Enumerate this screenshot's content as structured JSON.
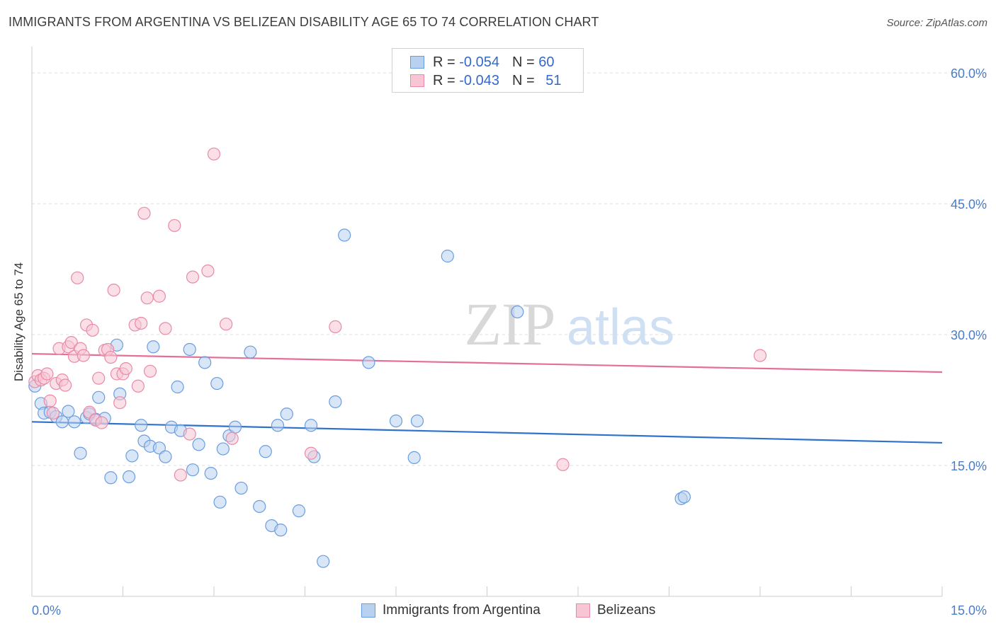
{
  "title": "IMMIGRANTS FROM ARGENTINA VS BELIZEAN DISABILITY AGE 65 TO 74 CORRELATION CHART",
  "source": "Source: ZipAtlas.com",
  "watermark": {
    "zip": "ZIP",
    "atlas": "atlas"
  },
  "legend": {
    "rows": [
      {
        "r_label": "R = ",
        "r_value": "-0.054",
        "n_label": "N = ",
        "n_value": "60"
      },
      {
        "r_label": "R = ",
        "r_value": "-0.043",
        "n_label": "N = ",
        "n_value": "51"
      }
    ]
  },
  "chart_data": {
    "type": "scatter",
    "title": "IMMIGRANTS FROM ARGENTINA VS BELIZEAN DISABILITY AGE 65 TO 74 CORRELATION CHART",
    "xlabel": "",
    "ylabel": "Disability Age 65 to 74",
    "xlim": [
      0,
      15
    ],
    "ylim": [
      0,
      63
    ],
    "x_tick_labels": [
      "0.0%",
      "15.0%"
    ],
    "y_ticks": [
      15,
      30,
      45,
      60
    ],
    "y_tick_labels": [
      "15.0%",
      "30.0%",
      "45.0%",
      "60.0%"
    ],
    "grid": true,
    "legend_placement": "top-center",
    "series": [
      {
        "name": "Immigrants from Argentina",
        "color": "#6a9de0",
        "fill": "#b9d1f1",
        "trend": [
          [
            0,
            20.0
          ],
          [
            15,
            17.6
          ]
        ],
        "points": [
          [
            0.05,
            24.1
          ],
          [
            0.15,
            22.1
          ],
          [
            0.2,
            21.0
          ],
          [
            0.3,
            21.1
          ],
          [
            0.4,
            20.6
          ],
          [
            0.5,
            20.0
          ],
          [
            0.6,
            21.2
          ],
          [
            0.7,
            20.0
          ],
          [
            0.8,
            16.4
          ],
          [
            0.9,
            20.5
          ],
          [
            0.95,
            20.9
          ],
          [
            1.05,
            20.3
          ],
          [
            1.1,
            22.8
          ],
          [
            1.2,
            20.4
          ],
          [
            1.3,
            13.6
          ],
          [
            1.4,
            28.8
          ],
          [
            1.45,
            23.2
          ],
          [
            1.6,
            13.7
          ],
          [
            1.65,
            16.1
          ],
          [
            1.8,
            19.6
          ],
          [
            1.85,
            17.8
          ],
          [
            1.95,
            17.2
          ],
          [
            2.0,
            28.6
          ],
          [
            2.1,
            17.0
          ],
          [
            2.2,
            16.0
          ],
          [
            2.3,
            19.4
          ],
          [
            2.4,
            24.0
          ],
          [
            2.45,
            19.0
          ],
          [
            2.6,
            28.3
          ],
          [
            2.65,
            14.5
          ],
          [
            2.75,
            17.4
          ],
          [
            2.85,
            26.8
          ],
          [
            2.95,
            14.1
          ],
          [
            3.05,
            24.4
          ],
          [
            3.1,
            10.8
          ],
          [
            3.15,
            16.9
          ],
          [
            3.25,
            18.4
          ],
          [
            3.35,
            19.4
          ],
          [
            3.45,
            12.4
          ],
          [
            3.6,
            28.0
          ],
          [
            3.75,
            10.3
          ],
          [
            3.85,
            16.6
          ],
          [
            3.95,
            8.1
          ],
          [
            4.05,
            19.6
          ],
          [
            4.1,
            7.6
          ],
          [
            4.2,
            20.9
          ],
          [
            4.4,
            9.8
          ],
          [
            4.6,
            19.6
          ],
          [
            4.65,
            16.0
          ],
          [
            4.8,
            4.0
          ],
          [
            5.0,
            22.3
          ],
          [
            5.15,
            41.4
          ],
          [
            5.55,
            26.8
          ],
          [
            6.0,
            20.1
          ],
          [
            6.35,
            20.1
          ],
          [
            6.3,
            15.9
          ],
          [
            6.85,
            39.0
          ],
          [
            8.0,
            32.6
          ],
          [
            10.7,
            11.2
          ],
          [
            10.75,
            11.4
          ]
        ]
      },
      {
        "name": "Belizeans",
        "color": "#e88aa8",
        "fill": "#f7c5d4",
        "trend": [
          [
            0,
            27.8
          ],
          [
            15,
            25.7
          ]
        ],
        "points": [
          [
            0.05,
            24.6
          ],
          [
            0.1,
            25.3
          ],
          [
            0.15,
            24.8
          ],
          [
            0.2,
            25.0
          ],
          [
            0.25,
            25.5
          ],
          [
            0.3,
            22.4
          ],
          [
            0.35,
            21.0
          ],
          [
            0.4,
            24.4
          ],
          [
            0.45,
            28.4
          ],
          [
            0.5,
            24.8
          ],
          [
            0.55,
            24.2
          ],
          [
            0.6,
            28.6
          ],
          [
            0.65,
            29.1
          ],
          [
            0.7,
            27.5
          ],
          [
            0.75,
            36.5
          ],
          [
            0.8,
            28.4
          ],
          [
            0.85,
            27.6
          ],
          [
            0.9,
            31.1
          ],
          [
            0.95,
            21.1
          ],
          [
            1.0,
            30.5
          ],
          [
            1.05,
            20.2
          ],
          [
            1.1,
            25.0
          ],
          [
            1.15,
            19.9
          ],
          [
            1.2,
            28.2
          ],
          [
            1.25,
            28.3
          ],
          [
            1.3,
            27.4
          ],
          [
            1.35,
            35.1
          ],
          [
            1.4,
            25.5
          ],
          [
            1.45,
            22.2
          ],
          [
            1.5,
            25.5
          ],
          [
            1.55,
            26.1
          ],
          [
            1.7,
            31.1
          ],
          [
            1.75,
            24.1
          ],
          [
            1.8,
            31.3
          ],
          [
            1.85,
            43.9
          ],
          [
            1.9,
            34.2
          ],
          [
            1.95,
            25.8
          ],
          [
            2.1,
            34.4
          ],
          [
            2.2,
            30.7
          ],
          [
            2.35,
            42.5
          ],
          [
            2.45,
            13.9
          ],
          [
            2.6,
            18.6
          ],
          [
            2.65,
            36.6
          ],
          [
            2.9,
            37.3
          ],
          [
            3.0,
            50.7
          ],
          [
            3.2,
            31.2
          ],
          [
            3.3,
            18.1
          ],
          [
            4.6,
            16.4
          ],
          [
            5.0,
            30.9
          ],
          [
            8.75,
            15.1
          ],
          [
            12.0,
            27.6
          ]
        ]
      }
    ]
  }
}
